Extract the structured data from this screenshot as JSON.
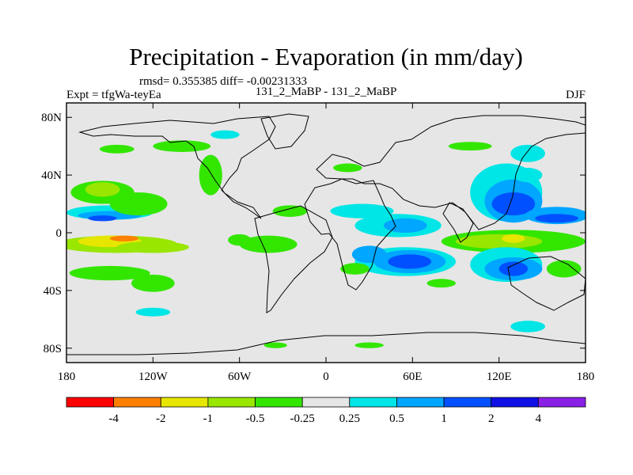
{
  "chart_data": {
    "type": "heatmap",
    "title": "Precipitation - Evaporation (in mm/day)",
    "stats_text": "rmsd= 0.355385 diff= -0.00231333",
    "left_label": "Expt = tfgWa-teyEa",
    "center_label": "131_2_MaBP - 131_2_MaBP",
    "right_label": "DJF",
    "x_ticks": [
      {
        "value": -180,
        "label": "180"
      },
      {
        "value": -120,
        "label": "120W"
      },
      {
        "value": -60,
        "label": "60W"
      },
      {
        "value": 0,
        "label": "0"
      },
      {
        "value": 60,
        "label": "60E"
      },
      {
        "value": 120,
        "label": "120E"
      },
      {
        "value": 180,
        "label": "180"
      }
    ],
    "y_ticks": [
      {
        "value": 80,
        "label": "80N"
      },
      {
        "value": 40,
        "label": "40N"
      },
      {
        "value": 0,
        "label": "0"
      },
      {
        "value": -40,
        "label": "40S"
      },
      {
        "value": -80,
        "label": "80S"
      }
    ],
    "xlim": [
      -180,
      180
    ],
    "ylim": [
      -90,
      90
    ],
    "background_color": "#e6e6e6",
    "colorbar": {
      "colors": [
        "#ff0000",
        "#ff8000",
        "#e6e600",
        "#99e600",
        "#33e600",
        "#e6e6e6",
        "#00e6e6",
        "#00a6ff",
        "#0050ff",
        "#1010e6",
        "#8a20e6"
      ],
      "labels": [
        "-4",
        "-2",
        "-1",
        "-0.5",
        "-0.25",
        "0.25",
        "0.5",
        "1",
        "2",
        "4"
      ]
    },
    "blobs": [
      {
        "lon": -145,
        "lat": -8,
        "rx": 42,
        "ry": 6,
        "level": 3
      },
      {
        "lon": -150,
        "lat": -6,
        "rx": 22,
        "ry": 4,
        "level": 2
      },
      {
        "lon": -140,
        "lat": -4,
        "rx": 10,
        "ry": 2,
        "level": 1
      },
      {
        "lon": -120,
        "lat": -10,
        "rx": 25,
        "ry": 4,
        "level": 3
      },
      {
        "lon": -150,
        "lat": 14,
        "rx": 30,
        "ry": 5,
        "level": 6
      },
      {
        "lon": -150,
        "lat": 12,
        "rx": 22,
        "ry": 3,
        "level": 7
      },
      {
        "lon": -155,
        "lat": 10,
        "rx": 10,
        "ry": 2,
        "level": 8
      },
      {
        "lon": -155,
        "lat": 28,
        "rx": 22,
        "ry": 8,
        "level": 4
      },
      {
        "lon": -155,
        "lat": 30,
        "rx": 12,
        "ry": 5,
        "level": 3
      },
      {
        "lon": -130,
        "lat": 20,
        "rx": 20,
        "ry": 8,
        "level": 4
      },
      {
        "lon": -150,
        "lat": -28,
        "rx": 28,
        "ry": 5,
        "level": 4
      },
      {
        "lon": -120,
        "lat": -35,
        "rx": 15,
        "ry": 6,
        "level": 4
      },
      {
        "lon": -120,
        "lat": -55,
        "rx": 12,
        "ry": 3,
        "level": 6
      },
      {
        "lon": -80,
        "lat": 40,
        "rx": 8,
        "ry": 14,
        "level": 4
      },
      {
        "lon": -100,
        "lat": 60,
        "rx": 20,
        "ry": 4,
        "level": 4
      },
      {
        "lon": -70,
        "lat": 68,
        "rx": 10,
        "ry": 3,
        "level": 6
      },
      {
        "lon": -145,
        "lat": 58,
        "rx": 12,
        "ry": 3,
        "level": 4
      },
      {
        "lon": -40,
        "lat": -8,
        "rx": 20,
        "ry": 6,
        "level": 4
      },
      {
        "lon": -60,
        "lat": -5,
        "rx": 8,
        "ry": 4,
        "level": 4
      },
      {
        "lon": -25,
        "lat": 15,
        "rx": 12,
        "ry": 4,
        "level": 4
      },
      {
        "lon": 25,
        "lat": 15,
        "rx": 22,
        "ry": 5,
        "level": 6
      },
      {
        "lon": 15,
        "lat": 45,
        "rx": 10,
        "ry": 3,
        "level": 4
      },
      {
        "lon": 50,
        "lat": 5,
        "rx": 30,
        "ry": 8,
        "level": 6
      },
      {
        "lon": 55,
        "lat": 5,
        "rx": 15,
        "ry": 5,
        "level": 7
      },
      {
        "lon": 55,
        "lat": -20,
        "rx": 35,
        "ry": 10,
        "level": 6
      },
      {
        "lon": 58,
        "lat": -20,
        "rx": 25,
        "ry": 8,
        "level": 7
      },
      {
        "lon": 58,
        "lat": -20,
        "rx": 15,
        "ry": 5,
        "level": 8
      },
      {
        "lon": 30,
        "lat": -15,
        "rx": 12,
        "ry": 6,
        "level": 7
      },
      {
        "lon": 20,
        "lat": -25,
        "rx": 10,
        "ry": 4,
        "level": 4
      },
      {
        "lon": 80,
        "lat": -35,
        "rx": 10,
        "ry": 3,
        "level": 4
      },
      {
        "lon": 125,
        "lat": 28,
        "rx": 25,
        "ry": 20,
        "level": 6
      },
      {
        "lon": 130,
        "lat": 22,
        "rx": 20,
        "ry": 15,
        "level": 7
      },
      {
        "lon": 130,
        "lat": 20,
        "rx": 15,
        "ry": 8,
        "level": 8
      },
      {
        "lon": 160,
        "lat": 12,
        "rx": 22,
        "ry": 6,
        "level": 7
      },
      {
        "lon": 160,
        "lat": 10,
        "rx": 15,
        "ry": 3,
        "level": 8
      },
      {
        "lon": 130,
        "lat": -6,
        "rx": 50,
        "ry": 8,
        "level": 4
      },
      {
        "lon": 120,
        "lat": -6,
        "rx": 30,
        "ry": 5,
        "level": 3
      },
      {
        "lon": 130,
        "lat": -4,
        "rx": 8,
        "ry": 3,
        "level": 2
      },
      {
        "lon": 125,
        "lat": -22,
        "rx": 25,
        "ry": 12,
        "level": 6
      },
      {
        "lon": 130,
        "lat": -25,
        "rx": 20,
        "ry": 8,
        "level": 7
      },
      {
        "lon": 130,
        "lat": -25,
        "rx": 10,
        "ry": 5,
        "level": 8
      },
      {
        "lon": 165,
        "lat": -25,
        "rx": 12,
        "ry": 6,
        "level": 4
      },
      {
        "lon": 140,
        "lat": -65,
        "rx": 12,
        "ry": 4,
        "level": 6
      },
      {
        "lon": 140,
        "lat": 55,
        "rx": 12,
        "ry": 6,
        "level": 6
      },
      {
        "lon": 100,
        "lat": 60,
        "rx": 15,
        "ry": 3,
        "level": 4
      },
      {
        "lon": 30,
        "lat": -78,
        "rx": 10,
        "ry": 2,
        "level": 4
      },
      {
        "lon": -35,
        "lat": -78,
        "rx": 8,
        "ry": 2,
        "level": 4
      },
      {
        "lon": 140,
        "lat": 40,
        "rx": 10,
        "ry": 5,
        "level": 6
      }
    ]
  }
}
